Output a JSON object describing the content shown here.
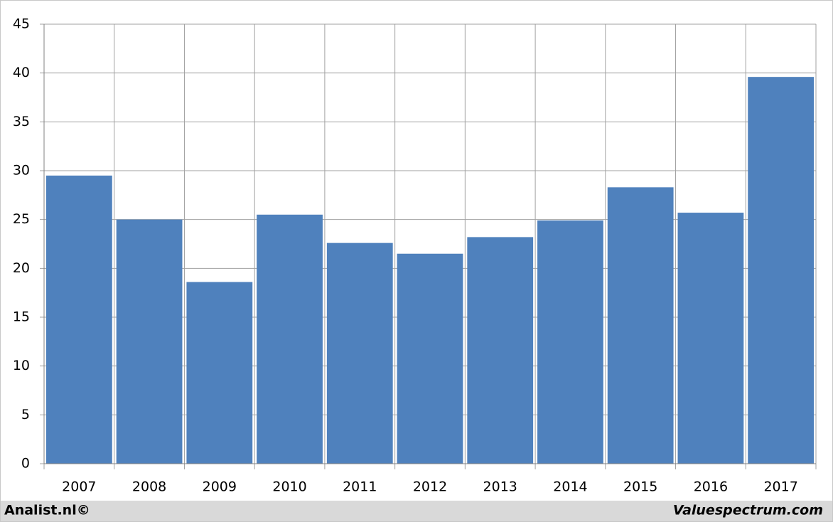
{
  "chart_data": {
    "type": "bar",
    "categories": [
      "2007",
      "2008",
      "2009",
      "2010",
      "2011",
      "2012",
      "2013",
      "2014",
      "2015",
      "2016",
      "2017"
    ],
    "values": [
      29.5,
      25.0,
      18.6,
      25.5,
      22.6,
      21.5,
      23.2,
      24.9,
      28.3,
      25.7,
      39.6
    ],
    "color": "#4f81bd",
    "ylim": [
      0,
      45
    ],
    "yticks": [
      0,
      5,
      10,
      15,
      20,
      25,
      30,
      35,
      40,
      45
    ],
    "grid": true
  },
  "footer": {
    "left": "Analist.nl©",
    "right": "Valuespectrum.com"
  }
}
